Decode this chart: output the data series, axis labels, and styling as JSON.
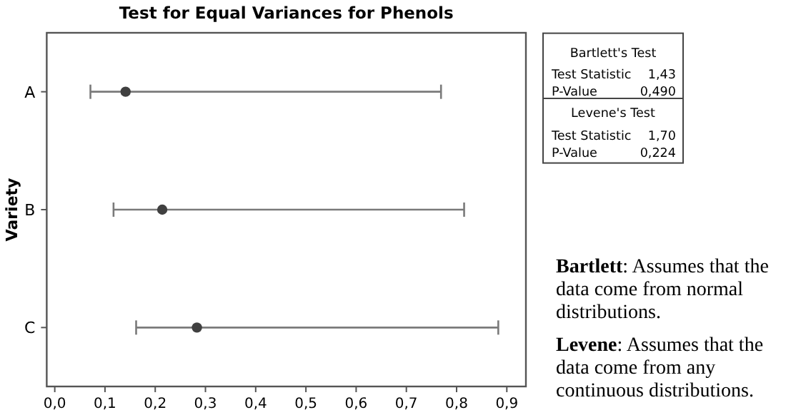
{
  "chart_data": {
    "type": "scatter",
    "orientation": "horizontal",
    "title": "Test for Equal Variances for Phenols",
    "ylabel": "Variety",
    "categories": [
      "A",
      "B",
      "C"
    ],
    "values": [
      0.141,
      0.214,
      0.283
    ],
    "errors": [
      [
        0.071,
        0.769
      ],
      [
        0.117,
        0.815
      ],
      [
        0.162,
        0.883
      ]
    ],
    "color": "#404040",
    "marker": "circle",
    "xlim": [
      -0.016,
      0.938
    ],
    "xticks": [
      {
        "value": 0,
        "label": "0,0"
      },
      {
        "value": 0.1,
        "label": "0,1"
      },
      {
        "value": 0.2,
        "label": "0,2"
      },
      {
        "value": 0.3,
        "label": "0,3"
      },
      {
        "value": 0.4,
        "label": "0,4"
      },
      {
        "value": 0.5,
        "label": "0,5"
      },
      {
        "value": 0.6,
        "label": "0,6"
      },
      {
        "value": 0.7,
        "label": "0,7"
      },
      {
        "value": 0.8,
        "label": "0,8"
      },
      {
        "value": 0.9,
        "label": "0,9"
      }
    ],
    "annotations": [
      "Bartlett's Test",
      "Test Statistic",
      "1,43",
      "P-Value",
      "0,490",
      "Levene's Test",
      "Test Statistic",
      "1,70",
      "P-Value",
      "0,224",
      "Bartlett: Assumes that the data come from normal distributions.",
      "Levene: Assumes that the data come from any continuous distributions."
    ]
  }
}
